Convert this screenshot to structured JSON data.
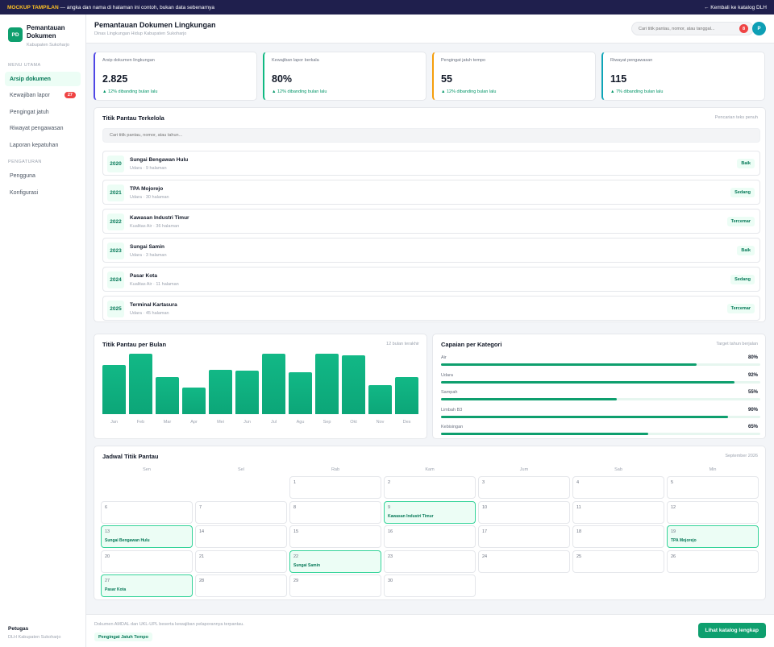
{
  "banner": {
    "label": "MOCKUP TAMPILAN",
    "text": "— angka dan nama di halaman ini contoh, bukan data sebenarnya",
    "back_link": "← Kembali ke katalog DLH"
  },
  "sidebar": {
    "logo": "PD",
    "app_title_line1": "Pemantauan",
    "app_title_line2": "Dokumen",
    "app_subtitle": "Kabupaten Sukoharjo",
    "section_main": "MENU UTAMA",
    "items": [
      {
        "label": "Arsip dokumen",
        "active": true
      },
      {
        "label": "Kewajiban lapor",
        "badge": "27"
      },
      {
        "label": "Pengingat jatuh"
      },
      {
        "label": "Riwayat pengawasan"
      },
      {
        "label": "Laporan kepatuhan"
      }
    ],
    "section_settings": "PENGATURAN",
    "settings_items": [
      {
        "label": "Pengguna"
      },
      {
        "label": "Konfigurasi"
      }
    ],
    "footer_role": "Petugas",
    "footer_org": "DLH Kabupaten Sukoharjo"
  },
  "header": {
    "title": "Pemantauan Dokumen Lingkungan",
    "subtitle": "Dinas Lingkungan Hidup Kabupaten Sukoharjo",
    "search_placeholder": "Cari titik pantau, nomor, atau tanggal...",
    "notif_count": "8",
    "avatar": "P"
  },
  "stats": [
    {
      "label": "Arsip dokumen lingkungan",
      "value": "2.825",
      "trend": "▲ 12% dibanding bulan lalu",
      "color": "#4f46e5"
    },
    {
      "label": "Kewajiban lapor berkala",
      "value": "80%",
      "trend": "▲ 12% dibanding bulan lalu",
      "color": "#10b981"
    },
    {
      "label": "Pengingat jatuh tempo",
      "value": "55",
      "trend": "▲ 12% dibanding bulan lalu",
      "color": "#f59e0b"
    },
    {
      "label": "Riwayat pengawasan",
      "value": "115",
      "trend": "▲ 7% dibanding bulan lalu",
      "color": "#0ea5b7"
    }
  ],
  "list": {
    "title": "Titik Pantau Terkelola",
    "meta": "Pencarian teks penuh",
    "search_placeholder": "Cari titik pantau, nomor, atau tahun...",
    "rows": [
      {
        "year": "2020",
        "name": "Sungai Bengawan Hulu",
        "meta": "Udara · 9 halaman",
        "status": "Baik"
      },
      {
        "year": "2021",
        "name": "TPA Mojorejo",
        "meta": "Udara · 30 halaman",
        "status": "Sedang"
      },
      {
        "year": "2022",
        "name": "Kawasan Industri Timur",
        "meta": "Kualitas Air · 36 halaman",
        "status": "Tercemar"
      },
      {
        "year": "2023",
        "name": "Sungai Samin",
        "meta": "Udara · 3 halaman",
        "status": "Baik"
      },
      {
        "year": "2024",
        "name": "Pasar Kota",
        "meta": "Kualitas Air · 11 halaman",
        "status": "Sedang"
      },
      {
        "year": "2025",
        "name": "Terminal Kartasura",
        "meta": "Udara · 45 halaman",
        "status": "Tercemar"
      }
    ]
  },
  "bar_panel": {
    "title": "Titik Pantau per Bulan",
    "meta": "12 bulan terakhir"
  },
  "chart_data": {
    "type": "bar",
    "categories": [
      "Jan",
      "Feb",
      "Mar",
      "Apr",
      "Mei",
      "Jun",
      "Jul",
      "Agu",
      "Sep",
      "Okt",
      "Nov",
      "Des"
    ],
    "values": [
      82,
      100,
      61,
      44,
      74,
      72,
      100,
      70,
      100,
      98,
      48,
      62
    ],
    "ylim": [
      0,
      100
    ],
    "grid": false,
    "color": "#12b886"
  },
  "categories_panel": {
    "title": "Capaian per Kategori",
    "meta": "Target tahun berjalan",
    "items": [
      {
        "label": "Air",
        "pct": "80%",
        "value": 80
      },
      {
        "label": "Udara",
        "pct": "92%",
        "value": 92
      },
      {
        "label": "Sampah",
        "pct": "55%",
        "value": 55
      },
      {
        "label": "Limbah B3",
        "pct": "90%",
        "value": 90
      },
      {
        "label": "Kebisingan",
        "pct": "65%",
        "value": 65
      }
    ]
  },
  "calendar": {
    "title": "Jadwal Titik Pantau",
    "month": "September 2026",
    "weekdays": [
      "Sen",
      "Sel",
      "Rab",
      "Kam",
      "Jum",
      "Sab",
      "Min"
    ],
    "first_weekday_index": 2,
    "days_in_month": 30,
    "events": {
      "9": "Kawasan Industri Timur",
      "13": "Sungai Bengawan Hulu",
      "19": "TPA Mojorejo",
      "22": "Sungai Samin",
      "27": "Pasar Kota"
    }
  },
  "footer": {
    "note": "Dokumen AMDAL dan UKL-UPL beserta kewajiban pelaporannya terpantau.",
    "chip": "Pengingat Jatuh Tempo",
    "cta": "Lihat katalog lengkap"
  }
}
